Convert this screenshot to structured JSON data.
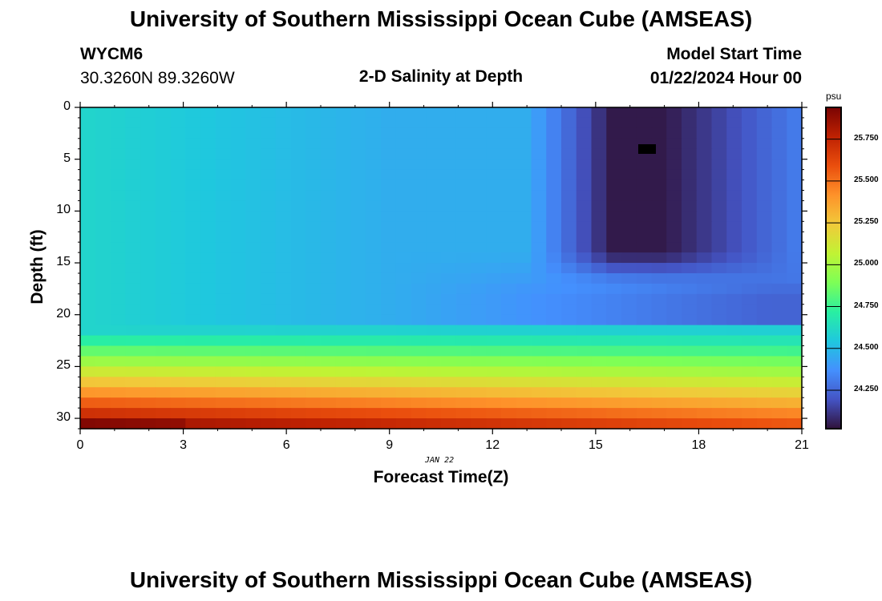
{
  "page": {
    "title_top": "University of Southern Mississippi Ocean Cube (AMSEAS)",
    "title_bottom": "University of Southern Mississippi Ocean Cube (AMSEAS)"
  },
  "header": {
    "station_id": "WYCM6",
    "coordinates": "30.3260N  89.3260W",
    "subtitle": "2-D Salinity at Depth",
    "model_start_label": "Model Start Time",
    "model_start_value": "01/22/2024 Hour 00"
  },
  "chart_data": {
    "type": "heatmap",
    "title": "2-D Salinity at Depth",
    "xlabel": "Forecast Time(Z)",
    "ylabel": "Depth (ft)",
    "x_ticks": [
      0,
      3,
      6,
      9,
      12,
      15,
      18,
      21
    ],
    "y_ticks": [
      0,
      5,
      10,
      15,
      20,
      25,
      30
    ],
    "xlim": [
      0,
      21
    ],
    "ylim": [
      0,
      31
    ],
    "date_annotation": "JAN 22",
    "colorbar": {
      "unit": "psu",
      "ticks": [
        "24.250",
        "24.500",
        "24.750",
        "25.000",
        "25.250",
        "25.500",
        "25.750"
      ],
      "min": 24.02,
      "max": 25.94,
      "colormap": [
        "#30123b",
        "#4454c4",
        "#4490fe",
        "#1fc8de",
        "#29efa2",
        "#7dff56",
        "#c1f334",
        "#f1ca3a",
        "#fe922a",
        "#ea4e0d",
        "#be2102",
        "#7a0403"
      ]
    },
    "grid": {
      "time_hours": [
        0,
        21
      ],
      "time_cols": 48,
      "depth_ft": [
        0,
        31
      ],
      "depth_rows": 31,
      "missing_value_marker": "black cell near hour 16.5, depth 4 ft"
    }
  }
}
